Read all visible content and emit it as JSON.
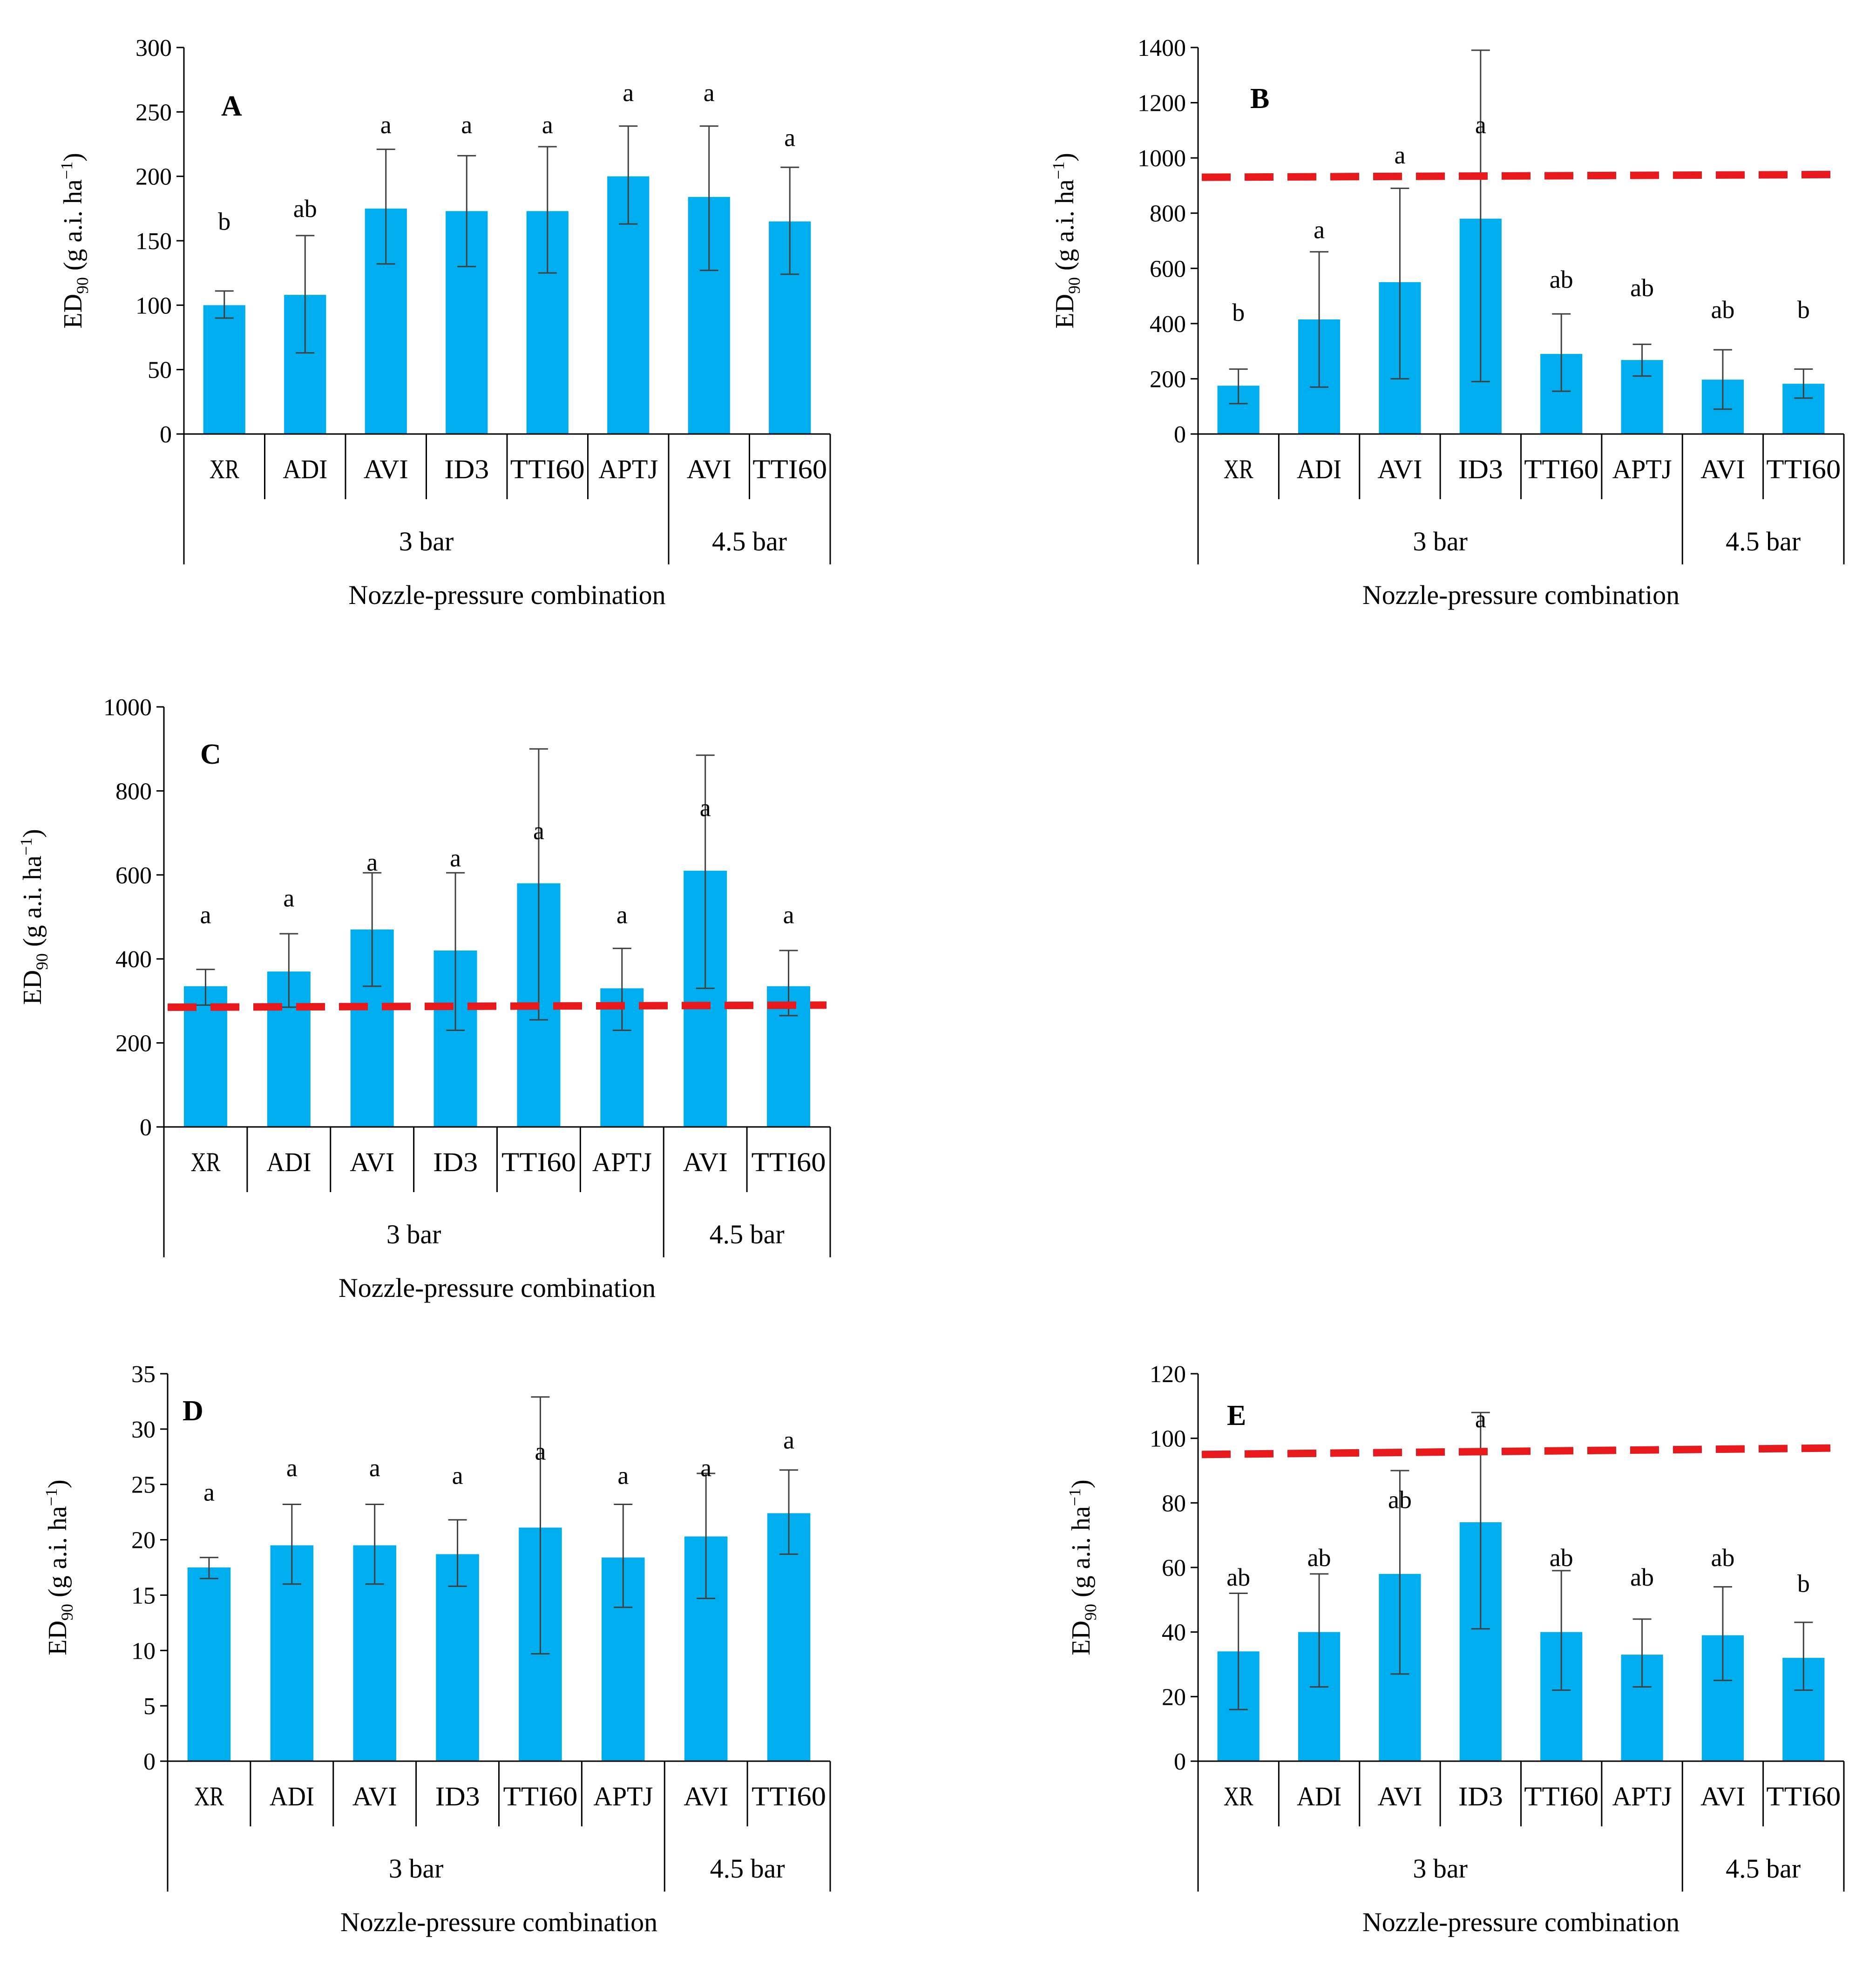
{
  "colors": {
    "bar": "#00AEEF",
    "reference_line": "#E8191C",
    "axis": "#000000",
    "error_bar": "#404040"
  },
  "chart_data": [
    {
      "panel": "A",
      "type": "bar",
      "title": "",
      "ylabel_main": "ED",
      "ylabel_sub": "90",
      "ylabel_rest": " (g a.i. ha",
      "ylabel_sup": "−1",
      "ylabel_end": ")",
      "xlabel": "Nozzle-pressure combination",
      "ylim": [
        0,
        300
      ],
      "yticks": [
        0,
        50,
        100,
        150,
        200,
        250,
        300
      ],
      "ytick_labels": [
        "0",
        "50",
        "100",
        "150",
        "200",
        "250",
        "300"
      ],
      "categories": [
        "XR",
        "ADI",
        "AVI",
        "ID3",
        "TTI60",
        "APTJ",
        "AVI",
        "TTI60"
      ],
      "values": [
        100,
        108,
        175,
        173,
        173,
        200,
        184,
        165
      ],
      "err_low": [
        90,
        63,
        132,
        130,
        125,
        163,
        127,
        124
      ],
      "err_high": [
        111,
        154,
        221,
        216,
        223,
        239,
        239,
        207
      ],
      "letters": [
        "b",
        "ab",
        "a",
        "a",
        "a",
        "a",
        "a",
        "a"
      ],
      "letter_values": [
        165,
        175,
        240,
        240,
        240,
        265,
        265,
        230
      ],
      "groups": [
        {
          "label": "3 bar",
          "span": [
            0,
            5
          ]
        },
        {
          "label": "4.5 bar",
          "span": [
            6,
            7
          ]
        }
      ],
      "reference_line": null
    },
    {
      "panel": "B",
      "type": "bar",
      "title": "",
      "ylabel_main": "ED",
      "ylabel_sub": "90",
      "ylabel_rest": " (g a.i. ha",
      "ylabel_sup": "−1",
      "ylabel_end": ")",
      "xlabel": "Nozzle-pressure combination",
      "ylim": [
        0,
        1400
      ],
      "yticks": [
        0,
        200,
        400,
        600,
        800,
        1000,
        1200,
        1400
      ],
      "ytick_labels": [
        "0",
        "200",
        "400",
        "600",
        "800",
        "1000",
        "1200",
        "1400"
      ],
      "categories": [
        "XR",
        "ADI",
        "AVI",
        "ID3",
        "TTI60",
        "APTJ",
        "AVI",
        "TTI60"
      ],
      "values": [
        175,
        415,
        550,
        780,
        290,
        268,
        197,
        182
      ],
      "err_low": [
        110,
        170,
        200,
        190,
        155,
        210,
        90,
        130
      ],
      "err_high": [
        235,
        660,
        890,
        1390,
        435,
        325,
        305,
        235
      ],
      "letters": [
        "b",
        "a",
        "a",
        "a",
        "ab",
        "ab",
        "ab",
        "b"
      ],
      "letter_values": [
        440,
        740,
        1010,
        1120,
        560,
        530,
        450,
        450
      ],
      "groups": [
        {
          "label": "3 bar",
          "span": [
            0,
            5
          ]
        },
        {
          "label": "4.5 bar",
          "span": [
            6,
            7
          ]
        }
      ],
      "reference_line": [
        930,
        940
      ]
    },
    {
      "panel": "C",
      "type": "bar",
      "title": "",
      "ylabel_main": "ED",
      "ylabel_sub": "90",
      "ylabel_rest": " (g a.i. ha",
      "ylabel_sup": "−1",
      "ylabel_end": ")",
      "xlabel": "Nozzle-pressure combination",
      "ylim": [
        0,
        1000
      ],
      "yticks": [
        0,
        200,
        400,
        600,
        800,
        1000
      ],
      "ytick_labels": [
        "0",
        "200",
        "400",
        "600",
        "800",
        "1000"
      ],
      "categories": [
        "XR",
        "ADI",
        "AVI",
        "ID3",
        "TTI60",
        "APTJ",
        "AVI",
        "TTI60"
      ],
      "values": [
        335,
        370,
        470,
        420,
        580,
        330,
        610,
        335
      ],
      "err_low": [
        290,
        285,
        335,
        230,
        255,
        230,
        330,
        265
      ],
      "err_high": [
        375,
        460,
        605,
        605,
        900,
        425,
        885,
        420
      ],
      "letters": [
        "a",
        "a",
        "a",
        "a",
        "a",
        "a",
        "a",
        "a"
      ],
      "letter_values": [
        505,
        545,
        630,
        640,
        705,
        505,
        760,
        505
      ],
      "groups": [
        {
          "label": "3 bar",
          "span": [
            0,
            5
          ]
        },
        {
          "label": "4.5 bar",
          "span": [
            6,
            7
          ]
        }
      ],
      "reference_line": [
        285,
        290
      ]
    },
    {
      "panel": "D",
      "type": "bar",
      "title": "",
      "ylabel_main": "ED",
      "ylabel_sub": "90",
      "ylabel_rest": " (g a.i. ha",
      "ylabel_sup": "−1",
      "ylabel_end": ")",
      "xlabel": "Nozzle-pressure combination",
      "ylim": [
        0,
        35
      ],
      "yticks": [
        0,
        5,
        10,
        15,
        20,
        25,
        30,
        35
      ],
      "ytick_labels": [
        "0",
        "5",
        "10",
        "15",
        "20",
        "25",
        "30",
        "35"
      ],
      "categories": [
        "XR",
        "ADI",
        "AVI",
        "ID3",
        "TTI60",
        "APTJ",
        "AVI",
        "TTI60"
      ],
      "values": [
        17.5,
        19.5,
        19.5,
        18.7,
        21.1,
        18.4,
        20.3,
        22.4
      ],
      "err_low": [
        16.5,
        16.0,
        16.0,
        15.8,
        9.7,
        13.9,
        14.7,
        18.7
      ],
      "err_high": [
        18.4,
        23.2,
        23.2,
        21.8,
        32.9,
        23.2,
        26.0,
        26.3
      ],
      "letters": [
        "a",
        "a",
        "a",
        "a",
        "a",
        "a",
        "a",
        "a"
      ],
      "letter_values": [
        24.3,
        26.5,
        26.5,
        25.8,
        28.0,
        25.8,
        26.5,
        29.0
      ],
      "groups": [
        {
          "label": "3 bar",
          "span": [
            0,
            5
          ]
        },
        {
          "label": "4.5 bar",
          "span": [
            6,
            7
          ]
        }
      ],
      "reference_line": null
    },
    {
      "panel": "E",
      "type": "bar",
      "title": "",
      "ylabel_main": "ED",
      "ylabel_sub": "90",
      "ylabel_rest": " (g a.i. ha",
      "ylabel_sup": "−1",
      "ylabel_end": ")",
      "xlabel": "Nozzle-pressure combination",
      "ylim": [
        0,
        120
      ],
      "yticks": [
        0,
        20,
        40,
        60,
        80,
        100,
        120
      ],
      "ytick_labels": [
        "0",
        "20",
        "40",
        "60",
        "80",
        "100",
        "120"
      ],
      "categories": [
        "XR",
        "ADI",
        "AVI",
        "ID3",
        "TTI60",
        "APTJ",
        "AVI",
        "TTI60"
      ],
      "values": [
        34,
        40,
        58,
        74,
        40,
        33,
        39,
        32
      ],
      "err_low": [
        16,
        23,
        27,
        41,
        22,
        23,
        25,
        22
      ],
      "err_high": [
        52,
        58,
        90,
        108,
        59,
        44,
        54,
        43
      ],
      "letters": [
        "ab",
        "ab",
        "ab",
        "a",
        "ab",
        "ab",
        "ab",
        "b"
      ],
      "letter_values": [
        57,
        63,
        81,
        106,
        63,
        57,
        63,
        55
      ],
      "groups": [
        {
          "label": "3 bar",
          "span": [
            0,
            5
          ]
        },
        {
          "label": "4.5 bar",
          "span": [
            6,
            7
          ]
        }
      ],
      "reference_line": [
        95,
        97
      ]
    }
  ]
}
